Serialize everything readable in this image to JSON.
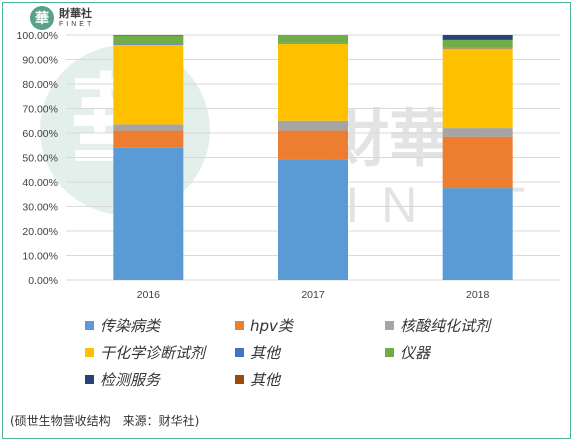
{
  "brand": {
    "mark_char": "華",
    "name_cn": "財華社",
    "name_en": "FINET"
  },
  "watermark": {
    "cn": "財華社",
    "en": "FINET",
    "mark_char": "華"
  },
  "caption": "(硕世生物营收结构　来源：财华社)",
  "colors": {
    "infectious": "#5b9bd5",
    "hpv": "#ed7d31",
    "nucleic": "#a5a5a5",
    "dry_chem": "#ffc000",
    "other1": "#4472c4",
    "instrument": "#70ad47",
    "testing": "#264478",
    "other2": "#9e480e",
    "grid": "#d9d9d9",
    "frame": "#4fb39a"
  },
  "chart_data": {
    "type": "bar",
    "stacked": true,
    "categories": [
      "2016",
      "2017",
      "2018"
    ],
    "ylim": [
      0,
      100
    ],
    "yticks": [
      "0.00%",
      "10.00%",
      "20.00%",
      "30.00%",
      "40.00%",
      "50.00%",
      "60.00%",
      "70.00%",
      "80.00%",
      "90.00%",
      "100.00%"
    ],
    "grid": true,
    "legend_position": "bottom",
    "series": [
      {
        "name": "传染病类",
        "color_key": "infectious",
        "values": [
          54,
          49,
          37.5
        ]
      },
      {
        "name": "hpv类",
        "color_key": "hpv",
        "values": [
          7,
          12,
          21
        ]
      },
      {
        "name": "核酸纯化试剂",
        "color_key": "nucleic",
        "values": [
          2.5,
          4,
          3.5
        ]
      },
      {
        "name": "干化学诊断试剂",
        "color_key": "dry_chem",
        "values": [
          32.5,
          31.5,
          32.5
        ]
      },
      {
        "name": "其他",
        "color_key": "other1",
        "values": [
          0.3,
          0.3,
          0.3
        ]
      },
      {
        "name": "仪器",
        "color_key": "instrument",
        "values": [
          3.5,
          3.2,
          3.2
        ]
      },
      {
        "name": "检测服务",
        "color_key": "testing",
        "values": [
          0,
          0,
          2
        ]
      },
      {
        "name": "其他",
        "color_key": "other2",
        "values": [
          0.2,
          0,
          0
        ]
      }
    ]
  }
}
